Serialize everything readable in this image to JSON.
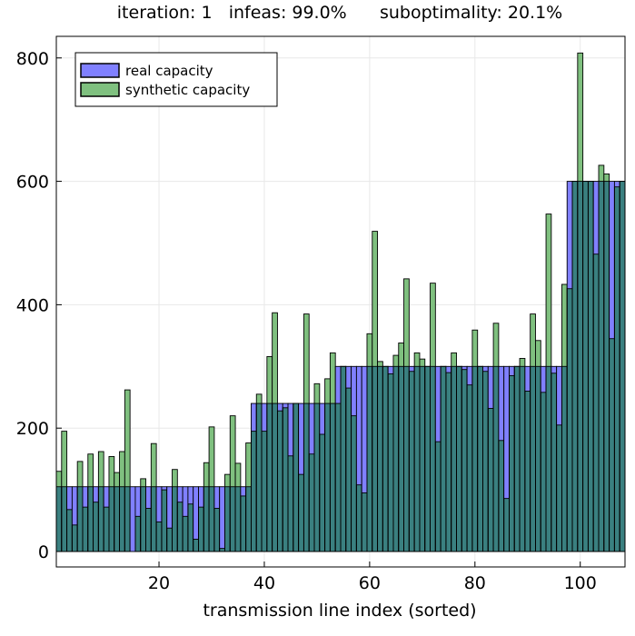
{
  "chart_data": {
    "type": "bar",
    "title": "iteration: 1   infeas: 99.0%      suboptimality: 20.1%",
    "xlabel": "transmission line index (sorted)",
    "ylabel": "",
    "xlim": [
      1,
      108
    ],
    "ylim": [
      -25,
      835
    ],
    "xticks": [
      20,
      40,
      60,
      80,
      100
    ],
    "yticks": [
      0,
      200,
      400,
      600,
      800
    ],
    "grid": true,
    "legend": "top-left",
    "colors": {
      "real": "#8080ff",
      "synthetic": "#45a045",
      "overlap": "#3a8080"
    },
    "x": [
      1,
      2,
      3,
      4,
      5,
      6,
      7,
      8,
      9,
      10,
      11,
      12,
      13,
      14,
      15,
      16,
      17,
      18,
      19,
      20,
      21,
      22,
      23,
      24,
      25,
      26,
      27,
      28,
      29,
      30,
      31,
      32,
      33,
      34,
      35,
      36,
      37,
      38,
      39,
      40,
      41,
      42,
      43,
      44,
      45,
      46,
      47,
      48,
      49,
      50,
      51,
      52,
      53,
      54,
      55,
      56,
      57,
      58,
      59,
      60,
      61,
      62,
      63,
      64,
      65,
      66,
      67,
      68,
      69,
      70,
      71,
      72,
      73,
      74,
      75,
      76,
      77,
      78,
      79,
      80,
      81,
      82,
      83,
      84,
      85,
      86,
      87,
      88,
      89,
      90,
      91,
      92,
      93,
      94,
      95,
      96,
      97,
      98,
      99,
      100,
      101,
      102,
      103,
      104,
      105,
      106,
      107,
      108
    ],
    "series": [
      {
        "name": "real capacity",
        "values": [
          105,
          105,
          105,
          105,
          105,
          105,
          105,
          105,
          105,
          105,
          105,
          105,
          105,
          105,
          105,
          105,
          105,
          105,
          105,
          105,
          105,
          105,
          105,
          105,
          105,
          105,
          105,
          105,
          105,
          105,
          105,
          105,
          105,
          105,
          105,
          105,
          105,
          240,
          240,
          240,
          240,
          240,
          240,
          240,
          240,
          240,
          240,
          240,
          240,
          240,
          240,
          240,
          240,
          300,
          300,
          300,
          300,
          300,
          300,
          300,
          300,
          300,
          300,
          300,
          300,
          300,
          300,
          300,
          300,
          300,
          300,
          300,
          300,
          300,
          300,
          300,
          300,
          300,
          300,
          300,
          300,
          300,
          300,
          300,
          300,
          300,
          300,
          300,
          300,
          300,
          300,
          300,
          300,
          300,
          300,
          300,
          300,
          600,
          600,
          600,
          600,
          600,
          600,
          600,
          600,
          600,
          600,
          600
        ]
      },
      {
        "name": "synthetic capacity",
        "values": [
          130,
          195,
          68,
          43,
          146,
          72,
          158,
          80,
          162,
          72,
          154,
          128,
          162,
          262,
          0,
          57,
          118,
          70,
          175,
          48,
          100,
          38,
          133,
          80,
          57,
          77,
          20,
          72,
          144,
          202,
          70,
          5,
          125,
          220,
          143,
          90,
          176,
          195,
          255,
          195,
          316,
          387,
          228,
          233,
          155,
          240,
          125,
          385,
          158,
          272,
          190,
          280,
          322,
          240,
          300,
          265,
          220,
          108,
          95,
          353,
          519,
          308,
          300,
          288,
          318,
          338,
          442,
          292,
          322,
          312,
          300,
          435,
          178,
          300,
          290,
          322,
          300,
          295,
          270,
          359,
          300,
          292,
          232,
          370,
          180,
          86,
          285,
          300,
          313,
          260,
          385,
          342,
          258,
          547,
          289,
          205,
          433,
          426,
          600,
          808,
          600,
          600,
          482,
          626,
          612,
          345,
          591,
          600
        ]
      }
    ]
  },
  "legend": {
    "real_label": "real capacity",
    "synthetic_label": "synthetic capacity"
  }
}
